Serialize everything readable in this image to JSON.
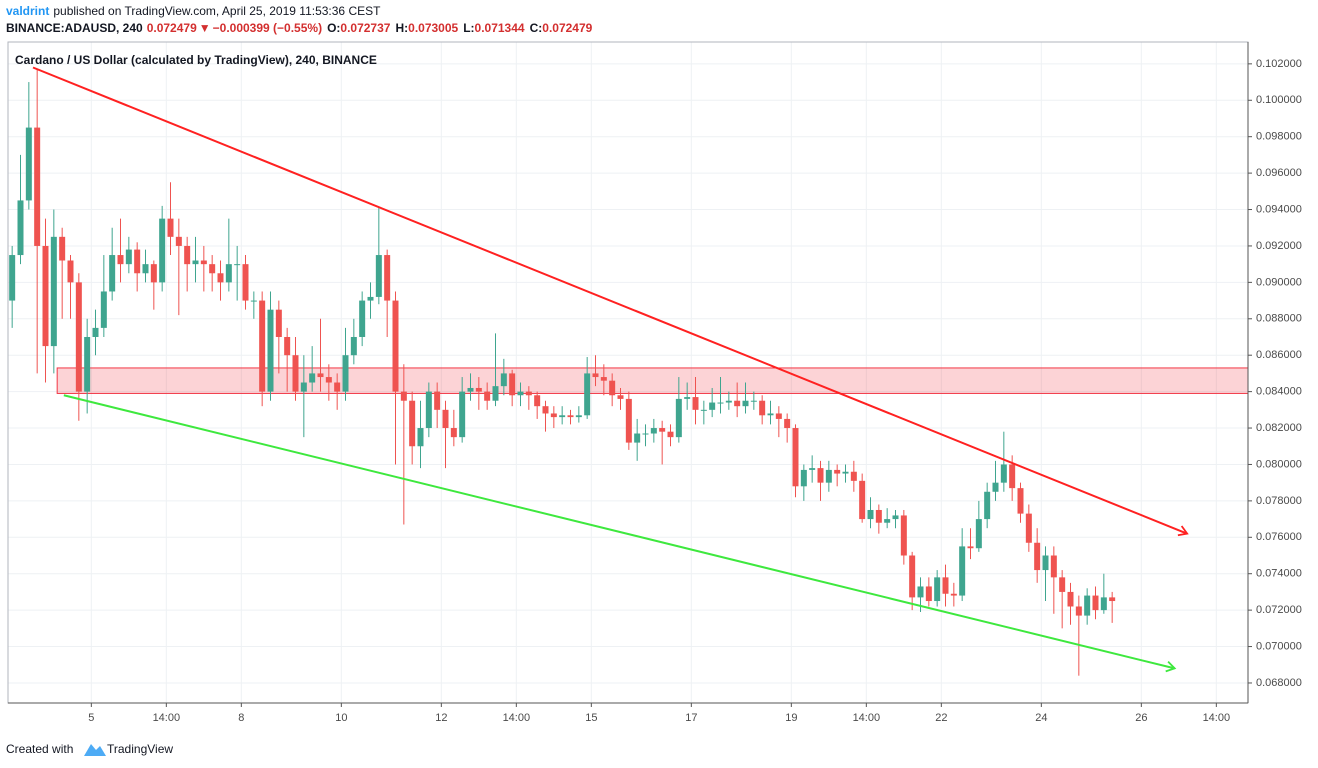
{
  "header": {
    "author": "valdrint",
    "published": "published on TradingView.com, April 25, 2019 11:53:36 CEST",
    "symbol": "BINANCE:ADAUSD, 240",
    "last": "0.072479",
    "arrow": "▼",
    "change": "−0.000399 (−0.55%)",
    "o_label": "O:",
    "o_value": "0.072737",
    "h_label": "H:",
    "h_value": "0.073005",
    "l_label": "L:",
    "l_value": "0.071344",
    "c_label": "C:",
    "c_value": "0.072479"
  },
  "footer": {
    "created": "Created with",
    "brand": "TradingView"
  },
  "chart_data": {
    "type": "candlestick",
    "title": "Cardano / US Dollar (calculated by TradingView), 240, BINANCE",
    "x": [
      0,
      1,
      2,
      3,
      4,
      5,
      6,
      7,
      8,
      9,
      10,
      11,
      12,
      13,
      14,
      15,
      16,
      17,
      18,
      19,
      20,
      21,
      22,
      23,
      24,
      25,
      26,
      27,
      28,
      29,
      30,
      31,
      32,
      33,
      34,
      35,
      36,
      37,
      38,
      39,
      40,
      41,
      42,
      43,
      44,
      45,
      46,
      47,
      48,
      49,
      50,
      51,
      52,
      53,
      54,
      55,
      56,
      57,
      58,
      59,
      60,
      61,
      62,
      63,
      64,
      65,
      66,
      67,
      68,
      69,
      70,
      71,
      72,
      73,
      74,
      75,
      76,
      77,
      78,
      79,
      80,
      81,
      82,
      83,
      84,
      85,
      86,
      87,
      88,
      89,
      90,
      91,
      92,
      93,
      94,
      95,
      96,
      97,
      98,
      99,
      100,
      101,
      102,
      103,
      104,
      105,
      106,
      107,
      108,
      109,
      110,
      111,
      112,
      113,
      114,
      115,
      116,
      117,
      118,
      119,
      120,
      121,
      122,
      123,
      124,
      125,
      126,
      127,
      128,
      129,
      130,
      131,
      132
    ],
    "open": [
      0.089,
      0.0915,
      0.0945,
      0.0985,
      0.092,
      0.0865,
      0.0925,
      0.0912,
      0.09,
      0.084,
      0.087,
      0.0875,
      0.0895,
      0.0915,
      0.091,
      0.0918,
      0.0905,
      0.091,
      0.09,
      0.0935,
      0.0925,
      0.092,
      0.091,
      0.0912,
      0.091,
      0.0905,
      0.09,
      0.091,
      0.091,
      0.089,
      0.089,
      0.084,
      0.0885,
      0.087,
      0.086,
      0.084,
      0.0845,
      0.085,
      0.0848,
      0.0845,
      0.084,
      0.086,
      0.087,
      0.089,
      0.0892,
      0.0915,
      0.089,
      0.084,
      0.0835,
      0.081,
      0.082,
      0.084,
      0.083,
      0.082,
      0.0815,
      0.084,
      0.0842,
      0.084,
      0.0835,
      0.0843,
      0.085,
      0.0838,
      0.084,
      0.0838,
      0.0832,
      0.0828,
      0.0826,
      0.0827,
      0.0826,
      0.0827,
      0.085,
      0.0848,
      0.0846,
      0.0838,
      0.0836,
      0.0812,
      0.0817,
      0.0817,
      0.082,
      0.0818,
      0.0815,
      0.0836,
      0.0837,
      0.083,
      0.083,
      0.0834,
      0.0834,
      0.0835,
      0.0832,
      0.0835,
      0.0835,
      0.0827,
      0.0828,
      0.0825,
      0.082,
      0.0788,
      0.0797,
      0.0798,
      0.079,
      0.0797,
      0.0795,
      0.0796,
      0.0791,
      0.077,
      0.0775,
      0.0768,
      0.077,
      0.0772,
      0.075,
      0.0727,
      0.0733,
      0.0725,
      0.0738,
      0.0729,
      0.0728,
      0.0755,
      0.0754,
      0.077,
      0.0785,
      0.079,
      0.08,
      0.0787,
      0.0773,
      0.0757,
      0.0742,
      0.075,
      0.0738,
      0.073,
      0.0722,
      0.0717,
      0.0728,
      0.072,
      0.0727
    ],
    "high": [
      0.092,
      0.097,
      0.101,
      0.1017,
      0.0935,
      0.094,
      0.093,
      0.0915,
      0.0905,
      0.088,
      0.0885,
      0.0915,
      0.093,
      0.0935,
      0.0925,
      0.0922,
      0.0918,
      0.0912,
      0.0942,
      0.0955,
      0.0935,
      0.0925,
      0.0925,
      0.092,
      0.0915,
      0.0912,
      0.0935,
      0.092,
      0.0915,
      0.0895,
      0.0895,
      0.0895,
      0.089,
      0.0875,
      0.087,
      0.086,
      0.0865,
      0.088,
      0.0855,
      0.085,
      0.0875,
      0.088,
      0.0895,
      0.09,
      0.0941,
      0.0918,
      0.0895,
      0.0855,
      0.084,
      0.0835,
      0.0845,
      0.0845,
      0.0835,
      0.083,
      0.0848,
      0.085,
      0.0848,
      0.0845,
      0.0872,
      0.0858,
      0.0852,
      0.0845,
      0.0843,
      0.084,
      0.0835,
      0.0832,
      0.0832,
      0.083,
      0.0832,
      0.0859,
      0.086,
      0.0855,
      0.085,
      0.0842,
      0.084,
      0.0825,
      0.0822,
      0.0825,
      0.0824,
      0.0822,
      0.0848,
      0.0845,
      0.0848,
      0.0835,
      0.0842,
      0.0848,
      0.084,
      0.0845,
      0.0845,
      0.084,
      0.0838,
      0.0835,
      0.0832,
      0.0828,
      0.0822,
      0.08,
      0.0805,
      0.0802,
      0.0802,
      0.08,
      0.08,
      0.0802,
      0.0795,
      0.0782,
      0.0778,
      0.0776,
      0.0775,
      0.0775,
      0.0752,
      0.0738,
      0.0738,
      0.0742,
      0.0745,
      0.0735,
      0.0765,
      0.0765,
      0.078,
      0.079,
      0.0802,
      0.0818,
      0.0805,
      0.079,
      0.0778,
      0.0765,
      0.0755,
      0.0755,
      0.0742,
      0.0735,
      0.0728,
      0.0732,
      0.0733,
      0.074,
      0.073
    ],
    "low": [
      0.0875,
      0.091,
      0.094,
      0.085,
      0.0845,
      0.085,
      0.088,
      0.088,
      0.0824,
      0.0828,
      0.086,
      0.087,
      0.089,
      0.09,
      0.0905,
      0.0895,
      0.09,
      0.0885,
      0.0895,
      0.0915,
      0.0882,
      0.0895,
      0.09,
      0.0895,
      0.0895,
      0.089,
      0.0895,
      0.089,
      0.0885,
      0.088,
      0.0832,
      0.0835,
      0.085,
      0.084,
      0.0835,
      0.0815,
      0.084,
      0.084,
      0.0835,
      0.083,
      0.0835,
      0.0855,
      0.0865,
      0.088,
      0.0888,
      0.087,
      0.08,
      0.0767,
      0.08,
      0.0798,
      0.0815,
      0.082,
      0.0798,
      0.081,
      0.0812,
      0.0835,
      0.083,
      0.083,
      0.0832,
      0.0838,
      0.0832,
      0.0832,
      0.083,
      0.0825,
      0.0818,
      0.082,
      0.0822,
      0.0822,
      0.0823,
      0.0825,
      0.0843,
      0.0838,
      0.0832,
      0.083,
      0.0808,
      0.0802,
      0.081,
      0.0812,
      0.08,
      0.081,
      0.0812,
      0.083,
      0.0822,
      0.0822,
      0.0826,
      0.0828,
      0.083,
      0.0826,
      0.0828,
      0.083,
      0.0822,
      0.0822,
      0.0815,
      0.0812,
      0.0782,
      0.078,
      0.079,
      0.078,
      0.0785,
      0.0788,
      0.079,
      0.0785,
      0.0768,
      0.0765,
      0.0762,
      0.0765,
      0.0765,
      0.0745,
      0.072,
      0.0719,
      0.0722,
      0.0722,
      0.0722,
      0.0722,
      0.0725,
      0.0748,
      0.0752,
      0.0765,
      0.078,
      0.0785,
      0.078,
      0.0768,
      0.0752,
      0.0735,
      0.0725,
      0.0718,
      0.071,
      0.0712,
      0.0684,
      0.0712,
      0.0715,
      0.0718,
      0.0713
    ],
    "close": [
      0.0915,
      0.0945,
      0.0985,
      0.092,
      0.0865,
      0.0925,
      0.0912,
      0.09,
      0.084,
      0.087,
      0.0875,
      0.0895,
      0.0915,
      0.091,
      0.0918,
      0.0905,
      0.091,
      0.09,
      0.0935,
      0.0925,
      0.092,
      0.091,
      0.0912,
      0.091,
      0.0905,
      0.09,
      0.091,
      0.091,
      0.089,
      0.089,
      0.084,
      0.0885,
      0.087,
      0.086,
      0.084,
      0.0845,
      0.085,
      0.0848,
      0.0845,
      0.084,
      0.086,
      0.087,
      0.089,
      0.0892,
      0.0915,
      0.089,
      0.084,
      0.0835,
      0.081,
      0.082,
      0.084,
      0.083,
      0.082,
      0.0815,
      0.084,
      0.0842,
      0.084,
      0.0835,
      0.0843,
      0.085,
      0.0838,
      0.084,
      0.0838,
      0.0832,
      0.0828,
      0.0826,
      0.0827,
      0.0826,
      0.0827,
      0.085,
      0.0848,
      0.0846,
      0.0838,
      0.0836,
      0.0812,
      0.0817,
      0.0817,
      0.082,
      0.0818,
      0.0815,
      0.0836,
      0.0837,
      0.083,
      0.083,
      0.0834,
      0.0834,
      0.0835,
      0.0832,
      0.0835,
      0.0835,
      0.0827,
      0.0828,
      0.0825,
      0.082,
      0.0788,
      0.0797,
      0.0798,
      0.079,
      0.0797,
      0.0795,
      0.0796,
      0.0791,
      0.077,
      0.0775,
      0.0768,
      0.077,
      0.0772,
      0.075,
      0.0727,
      0.0733,
      0.0725,
      0.0738,
      0.0729,
      0.0728,
      0.0755,
      0.0754,
      0.077,
      0.0785,
      0.079,
      0.08,
      0.0787,
      0.0773,
      0.0757,
      0.0742,
      0.075,
      0.0738,
      0.073,
      0.0722,
      0.0717,
      0.0728,
      0.072,
      0.0727,
      0.0725
    ],
    "up_color": "#3fa58f",
    "down_color": "#ef5350",
    "xlim": [
      -0.5,
      148.3
    ],
    "xticks": [
      {
        "value": 9.5,
        "label": "5"
      },
      {
        "value": 18.5,
        "label": "14:00"
      },
      {
        "value": 27.5,
        "label": "8"
      },
      {
        "value": 39.5,
        "label": "10"
      },
      {
        "value": 51.5,
        "label": "12"
      },
      {
        "value": 60.5,
        "label": "14:00"
      },
      {
        "value": 69.5,
        "label": "15"
      },
      {
        "value": 81.5,
        "label": "17"
      },
      {
        "value": 93.5,
        "label": "19"
      },
      {
        "value": 102.5,
        "label": "14:00"
      },
      {
        "value": 111.5,
        "label": "22"
      },
      {
        "value": 123.5,
        "label": "24"
      },
      {
        "value": 135.5,
        "label": "26"
      },
      {
        "value": 144.5,
        "label": "14:00"
      }
    ],
    "ylim": [
      0.0669,
      0.1032
    ],
    "yticks": [
      {
        "value": 0.068,
        "label": "0.068000"
      },
      {
        "value": 0.07,
        "label": "0.070000"
      },
      {
        "value": 0.072,
        "label": "0.072000"
      },
      {
        "value": 0.074,
        "label": "0.074000"
      },
      {
        "value": 0.076,
        "label": "0.076000"
      },
      {
        "value": 0.078,
        "label": "0.078000"
      },
      {
        "value": 0.08,
        "label": "0.080000"
      },
      {
        "value": 0.082,
        "label": "0.082000"
      },
      {
        "value": 0.084,
        "label": "0.084000"
      },
      {
        "value": 0.086,
        "label": "0.086000"
      },
      {
        "value": 0.088,
        "label": "0.088000"
      },
      {
        "value": 0.09,
        "label": "0.090000"
      },
      {
        "value": 0.092,
        "label": "0.092000"
      },
      {
        "value": 0.094,
        "label": "0.094000"
      },
      {
        "value": 0.096,
        "label": "0.096000"
      },
      {
        "value": 0.098,
        "label": "0.098000"
      },
      {
        "value": 0.1,
        "label": "0.100000"
      },
      {
        "value": 0.102,
        "label": "0.102000"
      }
    ],
    "grid": true,
    "zone": {
      "x_start": 5.4,
      "range": [
        0.0839,
        0.0853
      ],
      "color": "#f23645"
    },
    "trend_lines": [
      {
        "color": "#ff2121",
        "x": [
          2.5,
          141
        ],
        "y": [
          0.1018,
          0.0762
        ]
      },
      {
        "color": "#3ee83e",
        "x": [
          6.2,
          139.5
        ],
        "y": [
          0.0838,
          0.0688
        ]
      }
    ]
  }
}
